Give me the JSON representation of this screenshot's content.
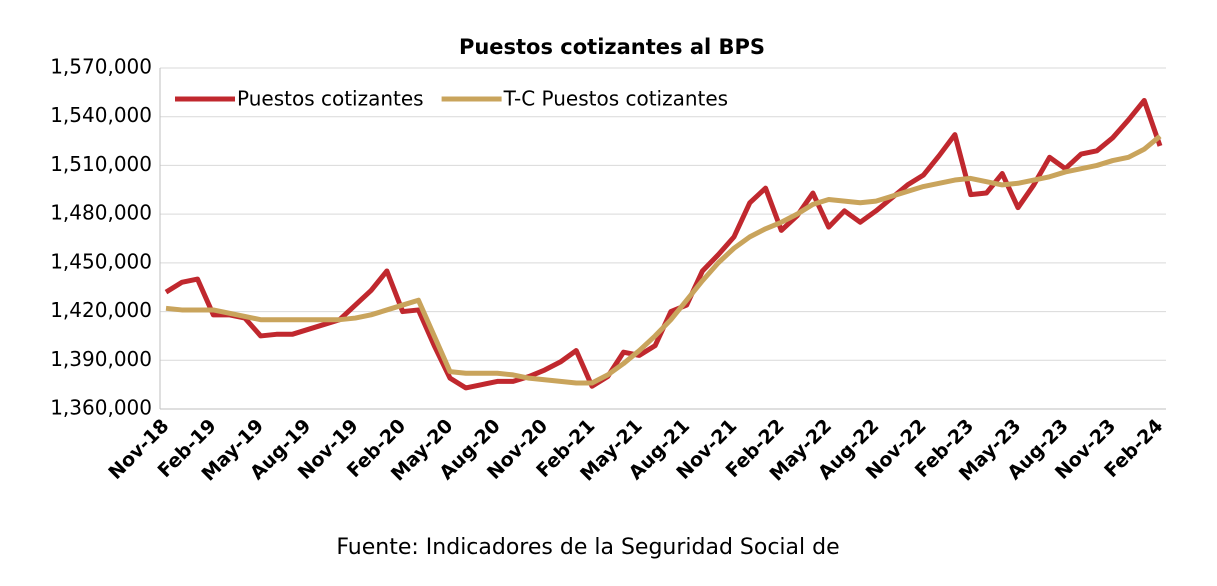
{
  "chart_data": {
    "type": "line",
    "title": "Puestos cotizantes al BPS",
    "source": "Fuente: Indicadores de la Seguridad Social de",
    "categories": [
      "Nov-18",
      null,
      null,
      "Feb-19",
      null,
      null,
      "May-19",
      null,
      null,
      "Aug-19",
      null,
      null,
      "Nov-19",
      null,
      null,
      "Feb-20",
      null,
      null,
      "May-20",
      null,
      null,
      "Aug-20",
      null,
      null,
      "Nov-20",
      null,
      null,
      "Feb-21",
      null,
      null,
      "May-21",
      null,
      null,
      "Aug-21",
      null,
      null,
      "Nov-21",
      null,
      null,
      "Feb-22",
      null,
      null,
      "May-22",
      null,
      null,
      "Aug-22",
      null,
      null,
      "Nov-22",
      null,
      null,
      "Feb-23",
      null,
      null,
      "May-23",
      null,
      null,
      "Aug-23",
      null,
      null,
      "Nov-23",
      null,
      null,
      "Feb-24"
    ],
    "series": [
      {
        "name": "Puestos cotizantes",
        "color": "#c0282e",
        "values": [
          1432000,
          1438000,
          1440000,
          1418000,
          1418000,
          1416000,
          1405000,
          1406000,
          1406000,
          1409000,
          1412000,
          1415000,
          1424000,
          1433000,
          1445000,
          1420000,
          1421000,
          1399000,
          1379000,
          1373000,
          1375000,
          1377000,
          1377000,
          1380000,
          1384000,
          1389000,
          1396000,
          1374000,
          1380000,
          1395000,
          1393000,
          1399000,
          1420000,
          1424000,
          1445000,
          1455000,
          1466000,
          1487000,
          1496000,
          1470000,
          1479000,
          1493000,
          1472000,
          1482000,
          1475000,
          1482000,
          1490000,
          1498000,
          1504000,
          1516000,
          1529000,
          1492000,
          1493000,
          1505000,
          1484000,
          1498000,
          1515000,
          1508000,
          1517000,
          1519000,
          1527000,
          1538000,
          1550000,
          1522000
        ]
      },
      {
        "name": "T-C Puestos cotizantes",
        "color": "#c9a45c",
        "values": [
          1422000,
          1421000,
          1421000,
          1421000,
          1419000,
          1417000,
          1415000,
          1415000,
          1415000,
          1415000,
          1415000,
          1415000,
          1416000,
          1418000,
          1421000,
          1424000,
          1427000,
          1405000,
          1383000,
          1382000,
          1382000,
          1382000,
          1381000,
          1379000,
          1378000,
          1377000,
          1376000,
          1376000,
          1381000,
          1388000,
          1396000,
          1405000,
          1415000,
          1427000,
          1439000,
          1450000,
          1459000,
          1466000,
          1471000,
          1475000,
          1480000,
          1486000,
          1489000,
          1488000,
          1487000,
          1488000,
          1491000,
          1494000,
          1497000,
          1499000,
          1501000,
          1502000,
          1500000,
          1498000,
          1499000,
          1501000,
          1503000,
          1506000,
          1508000,
          1510000,
          1513000,
          1515000,
          1520000,
          1528000
        ]
      }
    ],
    "ylim": [
      1360000,
      1570000
    ],
    "yticks": [
      {
        "value": 1360000,
        "label": "1,360,000"
      },
      {
        "value": 1390000,
        "label": "1,390,000"
      },
      {
        "value": 1420000,
        "label": "1,420,000"
      },
      {
        "value": 1450000,
        "label": "1,450,000"
      },
      {
        "value": 1480000,
        "label": "1,480,000"
      },
      {
        "value": 1510000,
        "label": "1,510,000"
      },
      {
        "value": 1540000,
        "label": "1,540,000"
      },
      {
        "value": 1570000,
        "label": "1,570,000"
      }
    ],
    "grid": true,
    "legend": "top-left"
  }
}
